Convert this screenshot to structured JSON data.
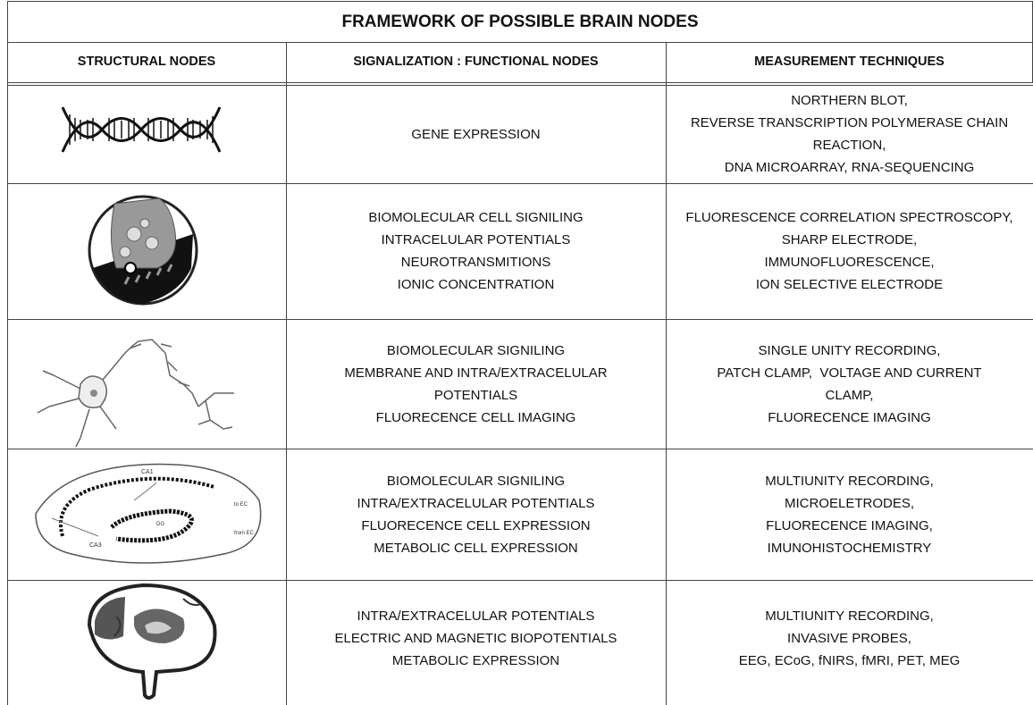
{
  "title": "FRAMEWORK OF POSSIBLE BRAIN NODES",
  "headers": [
    "STRUCTURAL NODES",
    "SIGNALIZATION : FUNCTIONAL NODES",
    "MEASUREMENT TECHNIQUES"
  ],
  "rows": [
    {
      "functional": [
        "GENE EXPRESSION"
      ],
      "measurement": [
        "NORTHERN BLOT,",
        "REVERSE TRANSCRIPTION POLYMERASE CHAIN",
        "REACTION,",
        "DNA MICROARRAY, RNA-SEQUENCING"
      ]
    },
    {
      "functional": [
        "BIOMOLECULAR CELL SIGNILING",
        "INTRACELULAR POTENTIALS",
        "NEUROTRANSMITIONS",
        "IONIC CONCENTRATION"
      ],
      "measurement": [
        "FLUORESCENCE CORRELATION SPECTROSCOPY,",
        "SHARP ELECTRODE,",
        "IMMUNOFLUORESCENCE,",
        "ION SELECTIVE ELECTRODE"
      ]
    },
    {
      "functional": [
        "BIOMOLECULAR SIGNILING",
        "MEMBRANE AND INTRA/EXTRACELULAR",
        "POTENTIALS",
        "FLUORECENCE CELL IMAGING"
      ],
      "measurement": [
        "SINGLE UNITY RECORDING,",
        "PATCH CLAMP,  VOLTAGE AND CURRENT",
        "CLAMP,",
        "FLUORECENCE IMAGING"
      ]
    },
    {
      "functional": [
        "BIOMOLECULAR SIGNILING",
        "INTRA/EXTRACELULAR POTENTIALS",
        "FLUORECENCE CELL EXPRESSION",
        "METABOLIC CELL EXPRESSION"
      ],
      "measurement": [
        "MULTIUNITY RECORDING,",
        "MICROELETRODES,",
        "FLUORECENCE IMAGING,",
        "IMUNOHISTOCHEMISTRY"
      ],
      "icon_labels": [
        "CA1",
        "CA3",
        "DG",
        "to EC",
        "from EC"
      ]
    },
    {
      "functional": [
        "INTRA/EXTRACELULAR POTENTIALS",
        "ELECTRIC AND MAGNETIC BIOPOTENTIALS",
        "METABOLIC EXPRESSION"
      ],
      "measurement": [
        "MULTIUNITY RECORDING,",
        "INVASIVE PROBES,",
        "EEG, ECoG, fNIRS, fMRI, PET, MEG"
      ]
    }
  ]
}
